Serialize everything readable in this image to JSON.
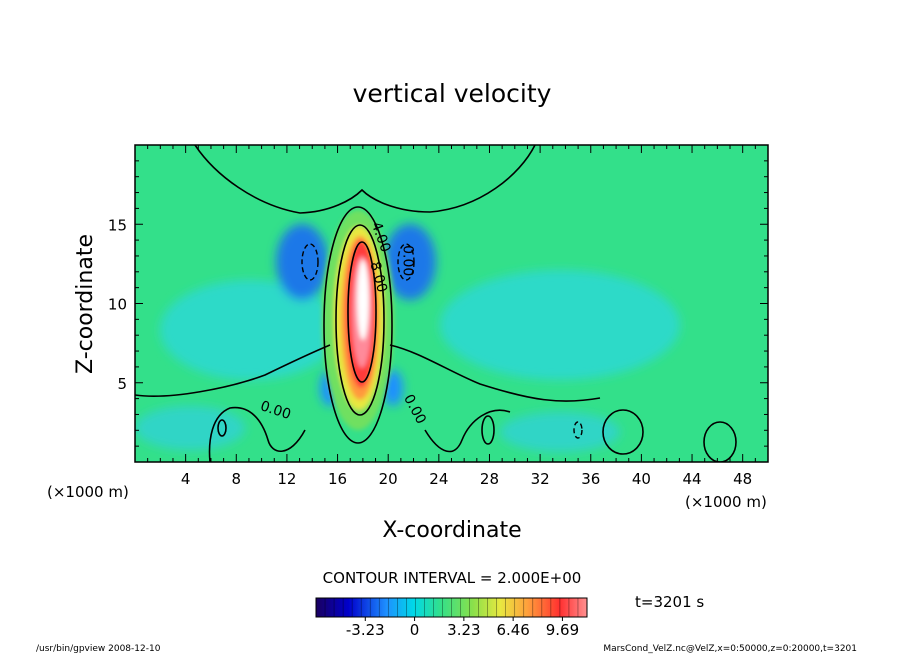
{
  "chart_data": {
    "type": "heatmap",
    "title": "vertical velocity",
    "xlabel": "X-coordinate",
    "ylabel": "Z-coordinate",
    "x_unit": "(×1000 m)",
    "x_unit_right": "(×1000 m)",
    "xlim": [
      0,
      50
    ],
    "ylim": [
      0,
      20
    ],
    "x_ticks": [
      4,
      8,
      12,
      16,
      20,
      24,
      28,
      32,
      36,
      40,
      44,
      48
    ],
    "y_ticks": [
      5,
      10,
      15
    ],
    "contour_interval_text": "CONTOUR INTERVAL = 2.000E+00",
    "contour_labels": [
      {
        "text": "0.00",
        "x": 11,
        "z": 3.0,
        "rot": 18
      },
      {
        "text": "0.00",
        "x": 21.8,
        "z": 3.2,
        "rot": 62
      },
      {
        "text": "0.00",
        "x": 21.2,
        "z": 12.7,
        "rot": 90
      },
      {
        "text": "4.00",
        "x": 19.1,
        "z": 14.1,
        "rot": 70
      },
      {
        "text": "8.00",
        "x": 18.9,
        "z": 11.6,
        "rot": 75
      }
    ],
    "colorbar": {
      "tick_labels": [
        "-3.23",
        "0",
        "3.23",
        "6.46",
        "9.69"
      ],
      "tick_values": [
        -3.23,
        0,
        3.23,
        6.46,
        9.69
      ],
      "vmin": -6.46,
      "vmax": 11.3
    },
    "time_text": "t=3201 s",
    "footer_left": "/usr/bin/gpview   2008-12-10",
    "footer_right": "MarsCond_VelZ.nc@VelZ,x=0:50000,z=0:20000,t=3201",
    "colors": {
      "background_field": "#33e08a",
      "peak": "#ffffff",
      "negative": "#1e90ff",
      "contour": "#000000"
    }
  }
}
